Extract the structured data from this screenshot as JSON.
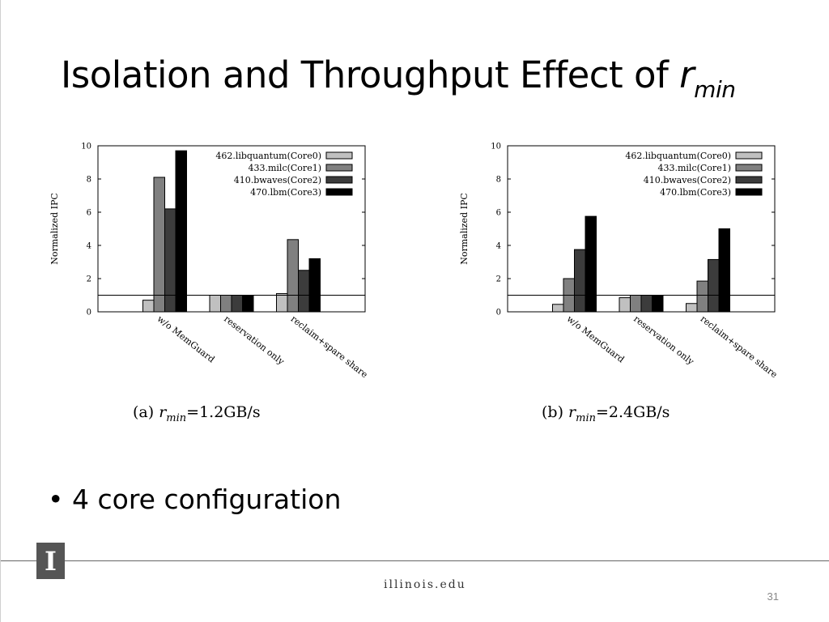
{
  "slide": {
    "title_main": "Isolation and Throughput Effect of ",
    "title_var": "r",
    "title_sub": "min",
    "bullet": "4 core configuration",
    "footer_site": "illinois.edu",
    "page_number": "31",
    "logo_letter": "I"
  },
  "colors": {
    "series": [
      "#c0c0c0",
      "#808080",
      "#3c3c3c",
      "#000000"
    ]
  },
  "chart_data": [
    {
      "type": "bar",
      "caption_prefix": "(a)",
      "caption_var": "r",
      "caption_sub": "min",
      "caption_value": "=1.2GB/s",
      "ylabel": "Normalized IPC",
      "ylim": [
        0,
        10
      ],
      "yticks": [
        "0",
        "2",
        "4",
        "6",
        "8",
        "10"
      ],
      "reference_line": 1,
      "categories": [
        "w/o MemGuard",
        "reservation only",
        "reclaim+spare share"
      ],
      "series": [
        {
          "name": "462.libquantum(Core0)",
          "values": [
            0.7,
            1.0,
            1.1
          ]
        },
        {
          "name": "433.milc(Core1)",
          "values": [
            8.1,
            1.0,
            4.35
          ]
        },
        {
          "name": "410.bwaves(Core2)",
          "values": [
            6.2,
            1.0,
            2.5
          ]
        },
        {
          "name": "470.lbm(Core3)",
          "values": [
            9.7,
            1.0,
            3.2
          ]
        }
      ],
      "legend": "top-right"
    },
    {
      "type": "bar",
      "caption_prefix": "(b)",
      "caption_var": "r",
      "caption_sub": "min",
      "caption_value": "=2.4GB/s",
      "ylabel": "Normalized IPC",
      "ylim": [
        0,
        10
      ],
      "yticks": [
        "0",
        "2",
        "4",
        "6",
        "8",
        "10"
      ],
      "reference_line": 1,
      "categories": [
        "w/o MemGuard",
        "reservation only",
        "reclaim+spare share"
      ],
      "series": [
        {
          "name": "462.libquantum(Core0)",
          "values": [
            0.45,
            0.85,
            0.5
          ]
        },
        {
          "name": "433.milc(Core1)",
          "values": [
            2.0,
            1.0,
            1.85
          ]
        },
        {
          "name": "410.bwaves(Core2)",
          "values": [
            3.75,
            1.0,
            3.15
          ]
        },
        {
          "name": "470.lbm(Core3)",
          "values": [
            5.75,
            1.0,
            5.0
          ]
        }
      ],
      "legend": "top-right"
    }
  ]
}
